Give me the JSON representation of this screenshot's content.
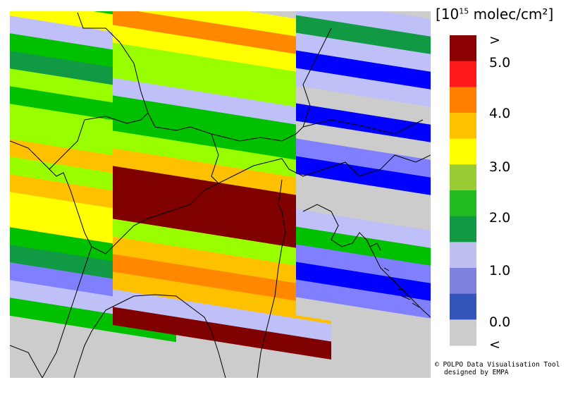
{
  "legend": {
    "unit_prefix": "10",
    "unit_exp": "15",
    "unit_suffix": "molec/cm²",
    "over_label": ">",
    "under_label": "<",
    "tick_labels": [
      "5.0",
      "4.0",
      "3.0",
      "2.0",
      "1.0",
      "0.0"
    ],
    "colors": [
      "#8b0000",
      "#ff1a1a",
      "#ff8000",
      "#ffc000",
      "#ffff00",
      "#99cc33",
      "#22bb22",
      "#119944",
      "#c0c0f0",
      "#8080e0",
      "#3355bb",
      "#cccccc"
    ]
  },
  "map_colors": {
    "dark-red": "#800000",
    "orange": "#ff8800",
    "amber": "#ffc000",
    "yellow": "#ffff00",
    "lime": "#99ff00",
    "green": "#00c000",
    "dark-green": "#119944",
    "lavender": "#c0c0f8",
    "periwinkle": "#8080ff",
    "blue": "#0000ff",
    "gray": "#cccccc"
  },
  "credit": {
    "line1": "© POLPO Data Visualisation Tool",
    "line2": "designed by EMPA"
  }
}
